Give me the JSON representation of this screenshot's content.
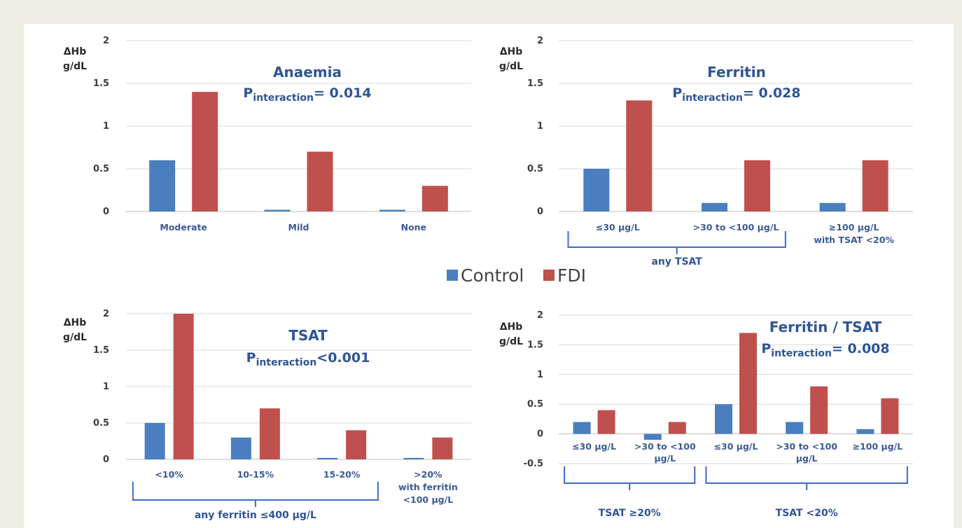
{
  "legend": [
    {
      "name": "Control",
      "color": "#4a7ebf"
    },
    {
      "name": "FDI",
      "color": "#c0504d"
    }
  ],
  "chart_data": [
    {
      "type": "bar",
      "title": "Anaemia",
      "p_interaction": {
        "label": "P",
        "sub": "interaction",
        "value": "= 0.014"
      },
      "ylabel": [
        "ΔHb",
        "g/dL"
      ],
      "ylim": [
        0,
        2
      ],
      "yticks": [
        "0",
        "0.5",
        "1",
        "1.5",
        "2"
      ],
      "categories": [
        "Moderate",
        "Mild",
        "None"
      ],
      "series": [
        {
          "name": "Control",
          "values": [
            0.6,
            0.02,
            0.02
          ]
        },
        {
          "name": "FDI",
          "values": [
            1.4,
            0.7,
            0.3
          ]
        }
      ],
      "groups": []
    },
    {
      "type": "bar",
      "title": "Ferritin",
      "p_interaction": {
        "label": "P",
        "sub": "interaction",
        "value": "= 0.028"
      },
      "ylabel": [
        "ΔHb",
        "g/dL"
      ],
      "ylim": [
        0,
        2
      ],
      "yticks": [
        "0",
        "0.5",
        "1",
        "1.5",
        "2"
      ],
      "categories": [
        [
          "≤30 μg/L"
        ],
        [
          ">30 to <100 μg/L"
        ],
        [
          "≥100 μg/L",
          "with TSAT <20%"
        ]
      ],
      "series": [
        {
          "name": "Control",
          "values": [
            0.5,
            0.1,
            0.1
          ]
        },
        {
          "name": "FDI",
          "values": [
            1.3,
            0.6,
            0.6
          ]
        }
      ],
      "groups": [
        {
          "label": "any TSAT",
          "from": 0,
          "to": 1
        }
      ]
    },
    {
      "type": "bar",
      "title": "TSAT",
      "p_interaction": {
        "label": "P",
        "sub": "interaction",
        "value": "<0.001"
      },
      "ylabel": [
        "ΔHb",
        "g/dL"
      ],
      "ylim": [
        0,
        2
      ],
      "yticks": [
        "0",
        "0.5",
        "1",
        "1.5",
        "2"
      ],
      "categories": [
        [
          "<10%"
        ],
        [
          "10-15%"
        ],
        [
          "15-20%"
        ],
        [
          ">20%",
          "with ferritin",
          "<100 μg/L"
        ]
      ],
      "series": [
        {
          "name": "Control",
          "values": [
            0.5,
            0.3,
            0.02,
            0.02
          ]
        },
        {
          "name": "FDI",
          "values": [
            2.0,
            0.7,
            0.4,
            0.3
          ]
        }
      ],
      "groups": [
        {
          "label": "any ferritin ≤400 μg/L",
          "from": 0,
          "to": 2
        }
      ]
    },
    {
      "type": "bar",
      "title": "Ferritin / TSAT",
      "p_interaction": {
        "label": "P",
        "sub": "interaction",
        "value": "= 0.008"
      },
      "ylabel": [
        "ΔHb",
        "g/dL"
      ],
      "ylim": [
        -0.5,
        2
      ],
      "yticks": [
        "-0.5",
        "0",
        "0.5",
        "1",
        "1.5",
        "2"
      ],
      "categories": [
        [
          "≤30 μg/L"
        ],
        [
          ">30 to <100",
          "μg/L"
        ],
        [
          "≤30 μg/L"
        ],
        [
          ">30 to <100",
          "μg/L"
        ],
        [
          "≥100 μg/L"
        ]
      ],
      "series": [
        {
          "name": "Control",
          "values": [
            0.2,
            -0.1,
            0.5,
            0.2,
            0.08
          ]
        },
        {
          "name": "FDI",
          "values": [
            0.4,
            0.2,
            1.7,
            0.8,
            0.6
          ]
        }
      ],
      "groups": [
        {
          "label": "TSAT ≥20%",
          "from": 0,
          "to": 1
        },
        {
          "label": "TSAT <20%",
          "from": 2,
          "to": 4
        }
      ]
    }
  ]
}
